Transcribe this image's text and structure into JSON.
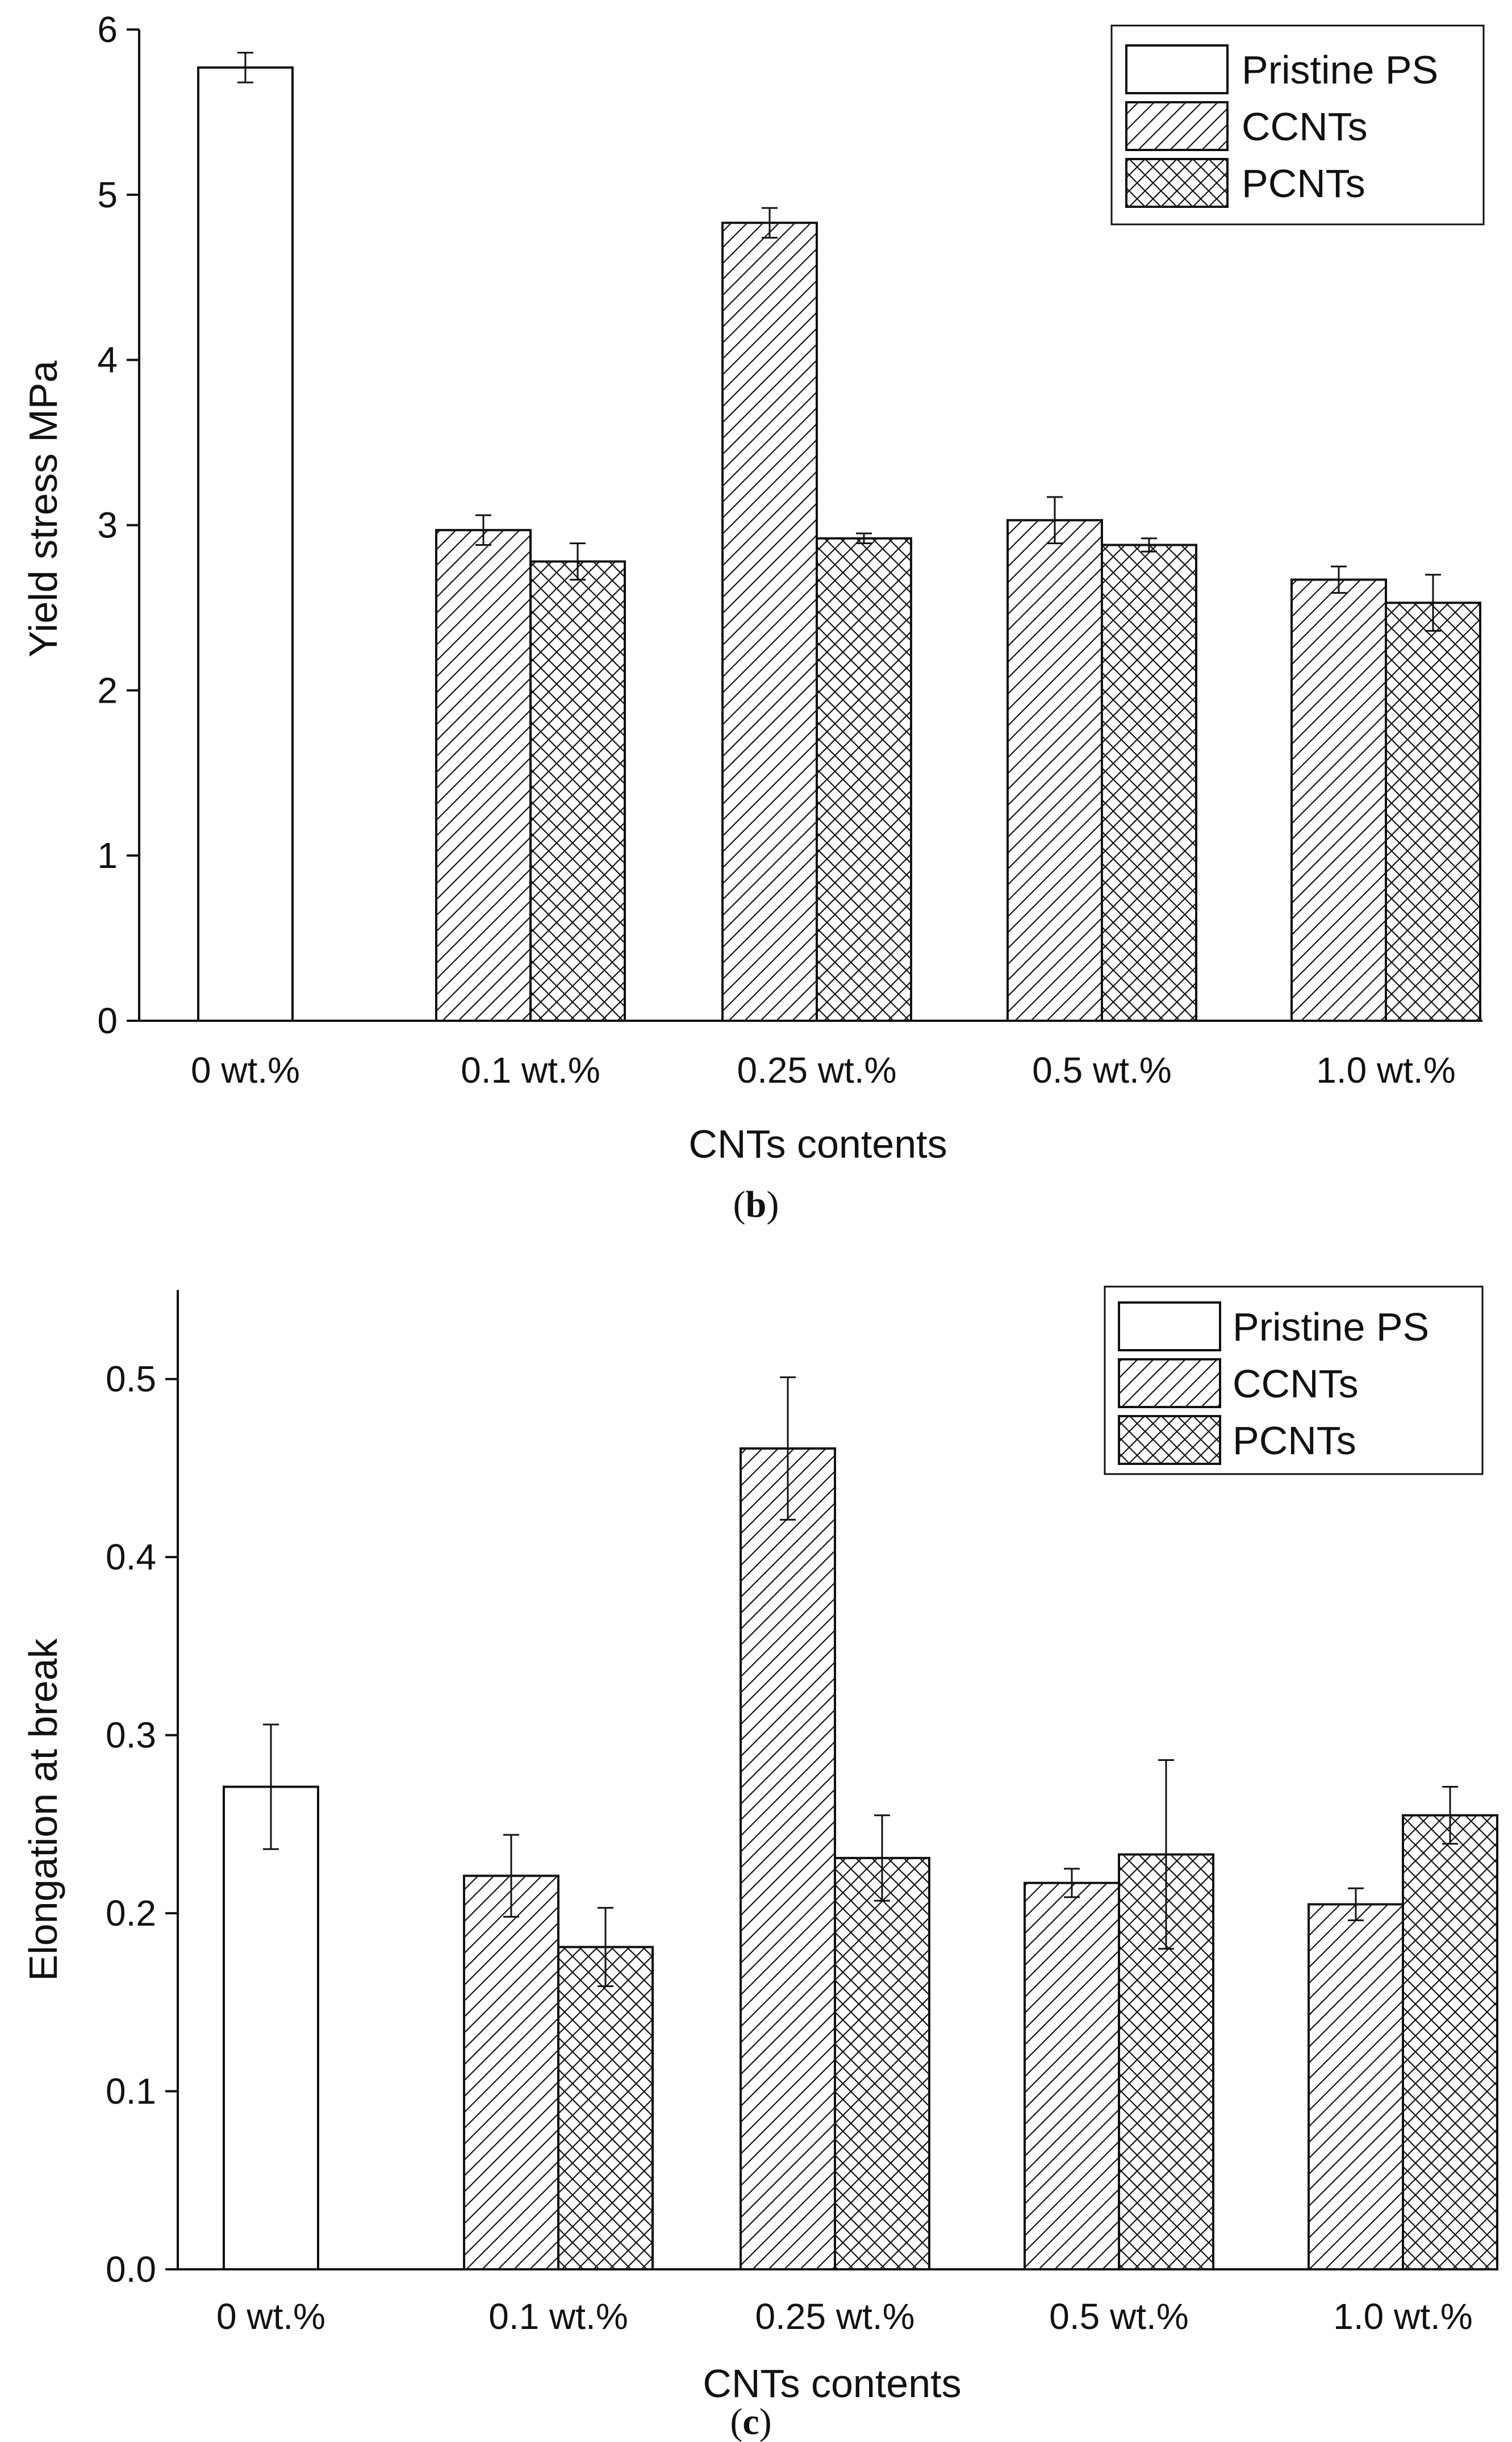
{
  "chart_data": [
    {
      "panel": "b",
      "type": "bar",
      "categories": [
        "0 wt.%",
        "0.1 wt.%",
        "0.25 wt.%",
        "0.5 wt.%",
        "1.0 wt.%"
      ],
      "series": [
        {
          "name": "Pristine PS",
          "pattern": "none",
          "values": [
            5.77,
            null,
            null,
            null,
            null
          ],
          "errors": [
            0.09,
            null,
            null,
            null,
            null
          ]
        },
        {
          "name": "CCNTs",
          "pattern": "diagonal",
          "values": [
            null,
            2.97,
            4.83,
            3.03,
            2.67
          ],
          "errors": [
            null,
            0.09,
            0.09,
            0.14,
            0.08
          ]
        },
        {
          "name": "PCNTs",
          "pattern": "crosshatch",
          "values": [
            null,
            2.78,
            2.92,
            2.88,
            2.53
          ],
          "errors": [
            null,
            0.11,
            0.03,
            0.04,
            0.17
          ]
        }
      ],
      "xlabel": "CNTs contents",
      "ylabel": "Yield stress MPa",
      "ylim": [
        0,
        6
      ],
      "yticks": [
        "0",
        "1",
        "2",
        "3",
        "4",
        "5",
        "6"
      ],
      "legend_position": "top-right",
      "caption_open": "(",
      "caption_letter": "b",
      "caption_close": ")"
    },
    {
      "panel": "c",
      "type": "bar",
      "categories": [
        "0 wt.%",
        "0.1 wt.%",
        "0.25 wt.%",
        "0.5 wt.%",
        "1.0 wt.%"
      ],
      "series": [
        {
          "name": "Pristine PS",
          "pattern": "none",
          "values": [
            0.271,
            null,
            null,
            null,
            null
          ],
          "errors": [
            0.035,
            null,
            null,
            null,
            null
          ]
        },
        {
          "name": "CCNTs",
          "pattern": "diagonal",
          "values": [
            null,
            0.221,
            0.461,
            0.217,
            0.205
          ],
          "errors": [
            null,
            0.023,
            0.04,
            0.008,
            0.009
          ]
        },
        {
          "name": "PCNTs",
          "pattern": "crosshatch",
          "values": [
            null,
            0.181,
            0.231,
            0.233,
            0.255
          ],
          "errors": [
            null,
            0.022,
            0.024,
            0.053,
            0.016
          ]
        }
      ],
      "xlabel": "CNTs contents",
      "ylabel": "Elongation at break",
      "ylim": [
        0,
        0.55
      ],
      "yticks": [
        "0.0",
        "0.1",
        "0.2",
        "0.3",
        "0.4",
        "0.5"
      ],
      "legend_position": "top-right",
      "caption_open": "(",
      "caption_letter": "c",
      "caption_close": ")"
    }
  ]
}
